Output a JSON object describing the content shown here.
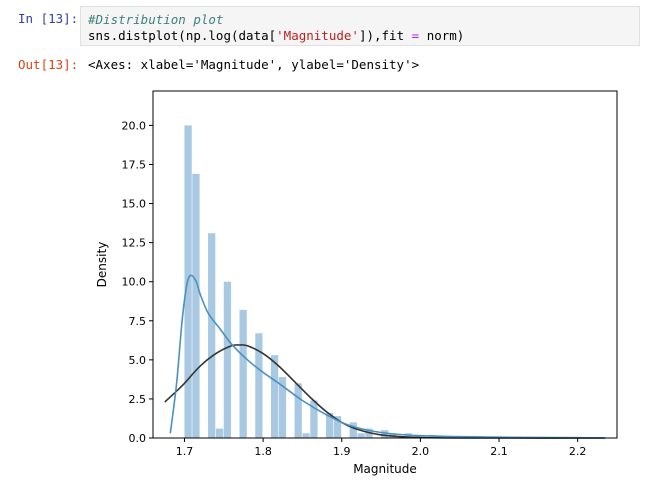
{
  "input_cell": {
    "prompt": "In [13]:",
    "comment": "#Distribution plot",
    "code_prefix": "sns.distplot(np.log(data[",
    "code_string": "'Magnitude'",
    "code_mid": "]),fit ",
    "code_op": "=",
    "code_suffix": " norm)"
  },
  "output_cell": {
    "prompt": "Out[13]:",
    "text": "<Axes: xlabel='Magnitude', ylabel='Density'>"
  },
  "colors": {
    "bar": "#a9c8e2",
    "kde": "#4a90c2",
    "fit": "#333333"
  },
  "chart_data": {
    "type": "bar",
    "xlabel": "Magnitude",
    "ylabel": "Density",
    "xlim": [
      1.66,
      2.25
    ],
    "ylim": [
      0,
      22.2
    ],
    "xticks": [
      1.7,
      1.8,
      1.9,
      2.0,
      2.1,
      2.2
    ],
    "xtick_labels": [
      "1.7",
      "1.8",
      "1.9",
      "2.0",
      "2.1",
      "2.2"
    ],
    "yticks": [
      0,
      2.5,
      5,
      7.5,
      10,
      12.5,
      15,
      17.5,
      20
    ],
    "ytick_labels": [
      "0.0",
      "2.5",
      "5.0",
      "7.5",
      "10.0",
      "12.5",
      "15.0",
      "17.5",
      "20.0"
    ],
    "bin_width": 0.01,
    "bins": [
      {
        "x": 1.7,
        "h": 20.0
      },
      {
        "x": 1.71,
        "h": 16.9
      },
      {
        "x": 1.73,
        "h": 13.1
      },
      {
        "x": 1.74,
        "h": 0.6
      },
      {
        "x": 1.75,
        "h": 10.0
      },
      {
        "x": 1.77,
        "h": 8.2
      },
      {
        "x": 1.79,
        "h": 6.7
      },
      {
        "x": 1.81,
        "h": 5.3
      },
      {
        "x": 1.82,
        "h": 3.9
      },
      {
        "x": 1.84,
        "h": 3.5
      },
      {
        "x": 1.85,
        "h": 0.3
      },
      {
        "x": 1.86,
        "h": 2.4
      },
      {
        "x": 1.88,
        "h": 1.6
      },
      {
        "x": 1.89,
        "h": 1.4
      },
      {
        "x": 1.91,
        "h": 1.0
      },
      {
        "x": 1.92,
        "h": 0.3
      },
      {
        "x": 1.93,
        "h": 0.6
      },
      {
        "x": 1.95,
        "h": 0.5
      },
      {
        "x": 1.96,
        "h": 0.3
      },
      {
        "x": 1.98,
        "h": 0.3
      },
      {
        "x": 1.99,
        "h": 0.1
      },
      {
        "x": 2.01,
        "h": 0.2
      },
      {
        "x": 2.02,
        "h": 0.1
      },
      {
        "x": 2.04,
        "h": 0.1
      },
      {
        "x": 2.07,
        "h": 0.1
      },
      {
        "x": 2.1,
        "h": 0.05
      },
      {
        "x": 2.13,
        "h": 0.05
      },
      {
        "x": 2.16,
        "h": 0.05
      }
    ],
    "kde": {
      "x": [
        1.682,
        1.69,
        1.697,
        1.703,
        1.708,
        1.715,
        1.72,
        1.73,
        1.745,
        1.76,
        1.78,
        1.8,
        1.82,
        1.85,
        1.88,
        1.91,
        1.95,
        2.0,
        2.1,
        2.2,
        2.235
      ],
      "y": [
        0.3,
        3.5,
        7.5,
        9.8,
        10.4,
        10.0,
        9.2,
        8.0,
        7.0,
        6.0,
        5.0,
        4.2,
        3.5,
        2.4,
        1.5,
        0.8,
        0.35,
        0.15,
        0.05,
        0.02,
        0.0
      ]
    },
    "fit": {
      "x": [
        1.675,
        1.69,
        1.7,
        1.72,
        1.74,
        1.76,
        1.77,
        1.78,
        1.8,
        1.82,
        1.84,
        1.86,
        1.88,
        1.9,
        1.92,
        1.95,
        2.0,
        2.1,
        2.235
      ],
      "y": [
        2.3,
        3.0,
        3.5,
        4.6,
        5.4,
        5.9,
        5.95,
        5.9,
        5.4,
        4.6,
        3.6,
        2.6,
        1.7,
        1.0,
        0.55,
        0.2,
        0.03,
        0.0,
        0.0
      ]
    }
  }
}
